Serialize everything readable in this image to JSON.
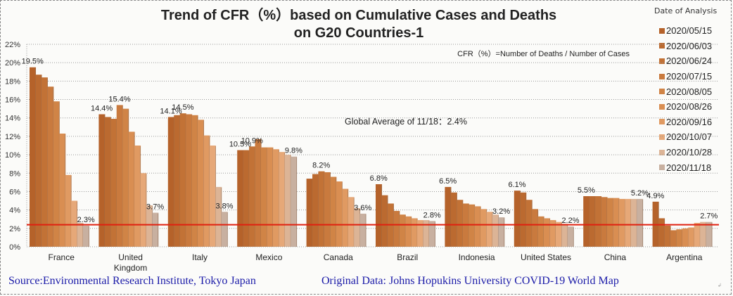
{
  "chart_data": {
    "type": "bar",
    "title_line1": "Trend of CFR（%）based on Cumulative Cases and Deaths",
    "title_line2": "on G20 Countries-1",
    "ylim": [
      0,
      22
    ],
    "yticks": [
      "0%",
      "2%",
      "4%",
      "6%",
      "8%",
      "10%",
      "12%",
      "14%",
      "16%",
      "18%",
      "20%",
      "22%"
    ],
    "grid": true,
    "legend_title": "Date of Analysis",
    "legend_position": "right",
    "formula_note": "CFR（%）=Number of  Deaths / Number of Cases",
    "reference_line": {
      "label": "Global Average of 11/18：2.4%",
      "value": 2.4,
      "color": "#e02010"
    },
    "series_names": [
      "2020/05/15",
      "2020/06/03",
      "2020/06/24",
      "2020/07/15",
      "2020/08/05",
      "2020/08/26",
      "2020/09/16",
      "2020/10/07",
      "2020/10/28",
      "2020/11/18"
    ],
    "series_colors": [
      "#b5622a",
      "#bb6a30",
      "#c27236",
      "#c97a3e",
      "#d08446",
      "#d98e52",
      "#e09a62",
      "#e6a878",
      "#dcb496",
      "#c8b0a0"
    ],
    "categories": [
      {
        "name": "France",
        "label_lines": [
          "France"
        ],
        "values": [
          19.5,
          18.7,
          18.4,
          17.4,
          15.8,
          12.3,
          7.8,
          5.0,
          2.6,
          2.3
        ],
        "labels": [
          {
            "series": 0,
            "text": "19.5%"
          },
          {
            "series": 9,
            "text": "2.3%"
          }
        ]
      },
      {
        "name": "United Kingdom",
        "label_lines": [
          "United",
          "Kingdom"
        ],
        "values": [
          14.4,
          14.1,
          13.9,
          15.4,
          15.0,
          12.5,
          11.0,
          8.0,
          4.5,
          3.7
        ],
        "labels": [
          {
            "series": 0,
            "text": "14.4%"
          },
          {
            "series": 3,
            "text": "15.4%"
          },
          {
            "series": 9,
            "text": "3.7%"
          }
        ]
      },
      {
        "name": "Italy",
        "label_lines": [
          "Italy"
        ],
        "values": [
          14.1,
          14.3,
          14.5,
          14.4,
          14.3,
          13.8,
          12.1,
          11.0,
          6.5,
          3.8
        ],
        "labels": [
          {
            "series": 0,
            "text": "14.1%"
          },
          {
            "series": 2,
            "text": "14.5%"
          },
          {
            "series": 9,
            "text": "3.8%"
          }
        ]
      },
      {
        "name": "Mexico",
        "label_lines": [
          "Mexico"
        ],
        "values": [
          10.5,
          10.5,
          10.9,
          11.7,
          10.8,
          10.8,
          10.6,
          10.3,
          10.0,
          9.8
        ],
        "labels": [
          {
            "series": 0,
            "text": "10.5%"
          },
          {
            "series": 2,
            "text": "10.9%"
          },
          {
            "series": 9,
            "text": "9.8%"
          }
        ]
      },
      {
        "name": "Canada",
        "label_lines": [
          "Canada"
        ],
        "values": [
          7.4,
          7.9,
          8.2,
          8.1,
          7.6,
          7.1,
          6.3,
          5.4,
          4.2,
          3.6
        ],
        "labels": [
          {
            "series": 2,
            "text": "8.2%"
          },
          {
            "series": 9,
            "text": "3.6%"
          }
        ]
      },
      {
        "name": "Brazil",
        "label_lines": [
          "Brazil"
        ],
        "values": [
          6.8,
          5.6,
          4.7,
          3.9,
          3.5,
          3.3,
          3.1,
          2.9,
          2.9,
          2.8
        ],
        "labels": [
          {
            "series": 0,
            "text": "6.8%"
          },
          {
            "series": 9,
            "text": "2.8%"
          }
        ]
      },
      {
        "name": "Indonesia",
        "label_lines": [
          "Indonesia"
        ],
        "values": [
          6.5,
          5.9,
          5.1,
          4.7,
          4.6,
          4.4,
          4.1,
          3.8,
          3.5,
          3.2
        ],
        "labels": [
          {
            "series": 0,
            "text": "6.5%"
          },
          {
            "series": 9,
            "text": "3.2%"
          }
        ]
      },
      {
        "name": "United States",
        "label_lines": [
          "United States"
        ],
        "values": [
          6.1,
          5.9,
          5.1,
          4.1,
          3.3,
          3.1,
          2.9,
          2.7,
          2.5,
          2.2
        ],
        "labels": [
          {
            "series": 0,
            "text": "6.1%"
          },
          {
            "series": 9,
            "text": "2.2%"
          }
        ]
      },
      {
        "name": "China",
        "label_lines": [
          "China"
        ],
        "values": [
          5.5,
          5.5,
          5.5,
          5.4,
          5.3,
          5.3,
          5.2,
          5.2,
          5.2,
          5.2
        ],
        "labels": [
          {
            "series": 0,
            "text": "5.5%"
          },
          {
            "series": 9,
            "text": "5.2%"
          }
        ]
      },
      {
        "name": "Argentina",
        "label_lines": [
          "Argentina"
        ],
        "values": [
          4.9,
          3.1,
          2.3,
          1.8,
          1.9,
          2.0,
          2.1,
          2.6,
          2.7,
          2.7
        ],
        "labels": [
          {
            "series": 0,
            "text": "4.9%"
          },
          {
            "series": 9,
            "text": "2.7%"
          }
        ]
      }
    ]
  },
  "footer": {
    "source": "Source:Environmental Research Institute, Tokyo Japan",
    "original_data": "Original Data: Johns Hopukins University COVID-19 World Map"
  }
}
